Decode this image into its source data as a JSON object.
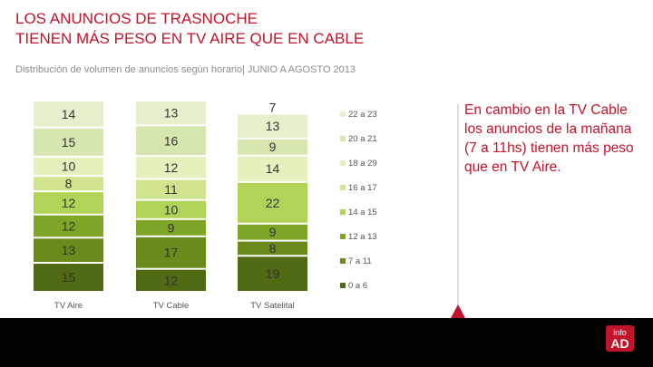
{
  "header": {
    "title": "LOS ANUNCIOS DE TRASNOCHE\nTIENEN MÁS PESO EN TV AIRE QUE EN CABLE",
    "subtitle": "Distribución de volumen de anuncios según horario| JUNIO A AGOSTO 2013"
  },
  "callout": "En cambio en la TV Cable los anuncios de la mañana (7 a 11hs) tienen más peso que en TV Aire.",
  "logo": {
    "top": "info",
    "bottom": "AD"
  },
  "colors": {
    "brand": "#c0142a",
    "footer": "#000000"
  },
  "chart_data": {
    "type": "bar",
    "stacked": true,
    "normalized": true,
    "categories": [
      "TV Aire",
      "TV Cable",
      "TV Satelital"
    ],
    "series": [
      {
        "name": "0 a 6",
        "values": [
          15,
          12,
          19
        ],
        "color": "#4f6a12"
      },
      {
        "name": "7 a 11",
        "values": [
          13,
          17,
          8
        ],
        "color": "#6a8a1c"
      },
      {
        "name": "12 a 13",
        "values": [
          12,
          9,
          9
        ],
        "color": "#7ea526"
      },
      {
        "name": "14 a 15",
        "values": [
          12,
          10,
          22
        ],
        "color": "#b1d458"
      },
      {
        "name": "16 a 17",
        "values": [
          8,
          11,
          0
        ],
        "color": "#cfe48d"
      },
      {
        "name": "18 a 29",
        "values": [
          10,
          12,
          14
        ],
        "color": "#e5f1bd"
      },
      {
        "name": "20 a 21",
        "values": [
          15,
          16,
          9
        ],
        "color": "#d6e6af"
      },
      {
        "name": "22 a 23",
        "values": [
          14,
          13,
          13
        ],
        "color": "#e6f0cc"
      }
    ],
    "extra_labels": [
      {
        "category": "TV Satelital",
        "position": "top",
        "value": 7
      }
    ],
    "legend_position": "right",
    "grid": false
  }
}
